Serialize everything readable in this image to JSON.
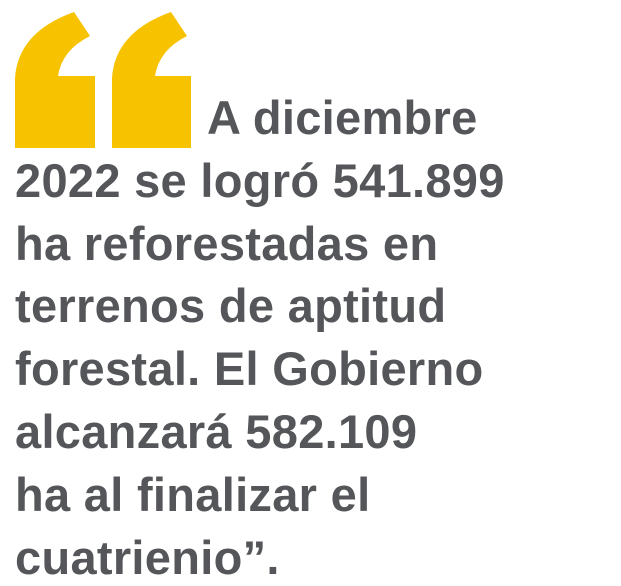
{
  "quote": {
    "lines": [
      "A diciembre",
      "2022 se logró 541.899",
      "ha reforestadas en",
      "terrenos de aptitud",
      "forestal. El Gobierno",
      "alcanzará 582.109",
      "ha al finalizar el",
      "cuatrienio”."
    ]
  }
}
